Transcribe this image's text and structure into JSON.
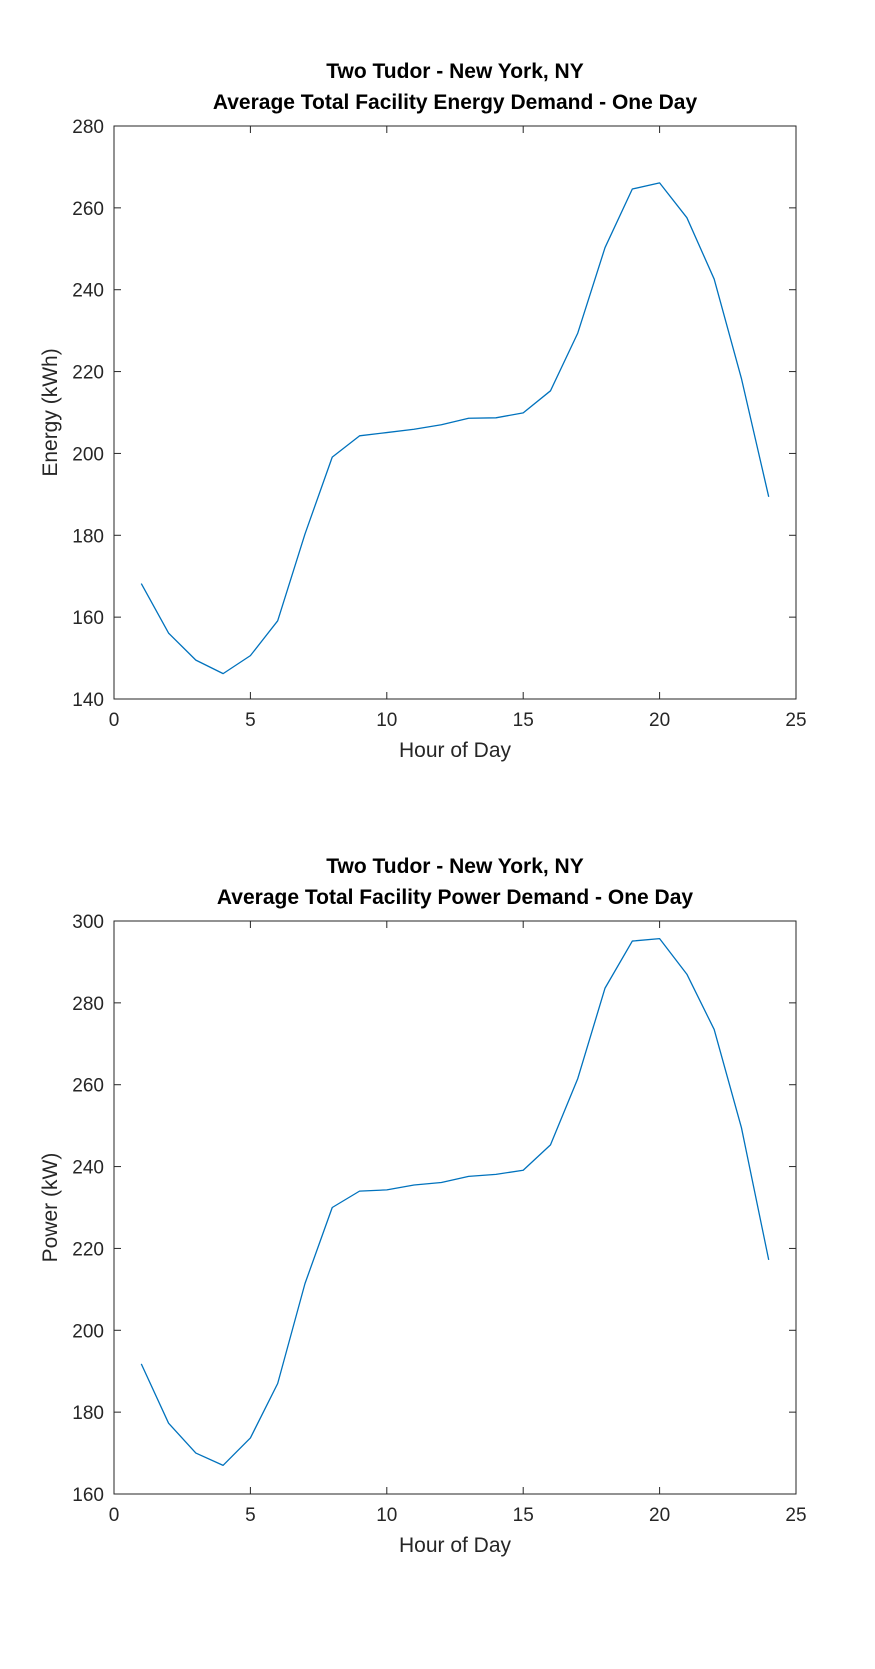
{
  "chart_data": [
    {
      "type": "line",
      "title": [
        "Two Tudor - New York, NY",
        "Average Total Facility Energy Demand - One Day"
      ],
      "xlabel": "Hour of Day",
      "ylabel": "Energy (kWh)",
      "xlim": [
        0,
        25
      ],
      "ylim": [
        140,
        280
      ],
      "xticks": [
        0,
        5,
        10,
        15,
        20,
        25
      ],
      "yticks": [
        140,
        160,
        180,
        200,
        220,
        240,
        260,
        280
      ],
      "grid": false,
      "line_color": "#0072BD",
      "series": [
        {
          "x": [
            1,
            2,
            3,
            4,
            5,
            6,
            7,
            8,
            9,
            10,
            11,
            12,
            13,
            14,
            15,
            16,
            17,
            18,
            19,
            20,
            21,
            22,
            23,
            24
          ],
          "values": [
            168.2,
            156.1,
            149.5,
            146.2,
            150.6,
            159.1,
            180.3,
            199.1,
            204.3,
            205.1,
            205.9,
            207.0,
            208.6,
            208.7,
            209.9,
            215.3,
            229.4,
            250.3,
            264.6,
            266.1,
            257.6,
            242.6,
            218.3,
            189.4
          ]
        }
      ]
    },
    {
      "type": "line",
      "title": [
        "Two Tudor - New York, NY",
        "Average Total Facility Power Demand - One Day"
      ],
      "xlabel": "Hour of Day",
      "ylabel": "Power (kW)",
      "xlim": [
        0,
        25
      ],
      "ylim": [
        160,
        300
      ],
      "xticks": [
        0,
        5,
        10,
        15,
        20,
        25
      ],
      "yticks": [
        160,
        180,
        200,
        220,
        240,
        260,
        280,
        300
      ],
      "grid": false,
      "line_color": "#0072BD",
      "series": [
        {
          "x": [
            1,
            2,
            3,
            4,
            5,
            6,
            7,
            8,
            9,
            10,
            11,
            12,
            13,
            14,
            15,
            16,
            17,
            18,
            19,
            20,
            21,
            22,
            23,
            24
          ],
          "values": [
            191.8,
            177.3,
            170.0,
            167.0,
            173.7,
            187.0,
            211.4,
            230.0,
            234.0,
            234.3,
            235.5,
            236.1,
            237.6,
            238.1,
            239.1,
            245.3,
            261.5,
            283.6,
            295.1,
            295.7,
            287.0,
            273.5,
            249.5,
            217.2
          ]
        }
      ]
    }
  ]
}
